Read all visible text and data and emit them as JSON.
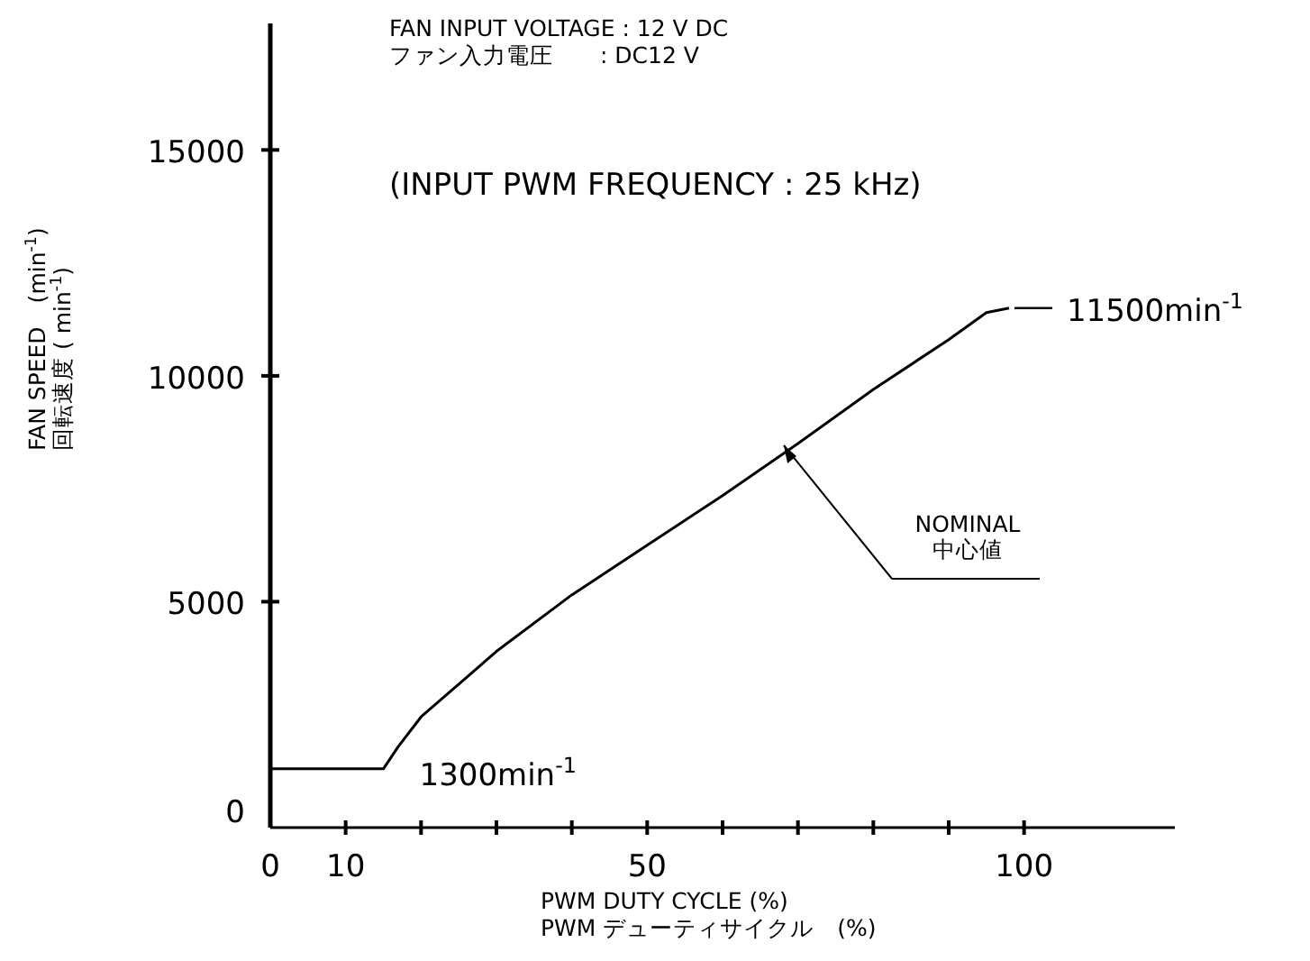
{
  "chart_data": {
    "type": "line",
    "title": "FAN INPUT VOLTAGE : 12 V DC\nファン入力電圧　　: DC12 V",
    "xlabel": "PWM DUTY CYCLE (%)\nPWM デューティサイクル　(%)",
    "ylabel": "FAN SPEED　(min$^{-1}$)\n回転速度 ( min$^{-1}$)",
    "annotations": [
      "(INPUT PWM FREQUENCY : 25 kHz)",
      {
        "text": "1300min$^{-1}$",
        "x": 15,
        "y": 1300
      },
      {
        "text": "11500min$^{-1}$",
        "x": 98,
        "y": 11500
      },
      "NOMINAL\n中心値"
    ],
    "xlim": [
      0,
      120
    ],
    "ylim": [
      0,
      17800
    ],
    "xticks": [
      0,
      10,
      {
        "value": 20,
        "label": null
      },
      {
        "value": 30,
        "label": null
      },
      {
        "value": 40,
        "label": null
      },
      50,
      {
        "value": 60,
        "label": null
      },
      {
        "value": 70,
        "label": null
      },
      {
        "value": 80,
        "label": null
      },
      {
        "value": 90,
        "label": null
      },
      100
    ],
    "yticks": [
      0,
      5000,
      10000,
      15000
    ],
    "grid": false,
    "marker": "none",
    "line_style": "solid",
    "series": [
      {
        "color": "#000000",
        "x": [
          0,
          15,
          17,
          20,
          30,
          40,
          50,
          60,
          70,
          80,
          90,
          95,
          98
        ],
        "values": [
          1300,
          1300,
          1800,
          2450,
          3900,
          5150,
          6250,
          7350,
          8500,
          9700,
          10800,
          11400,
          11500
        ]
      }
    ]
  }
}
